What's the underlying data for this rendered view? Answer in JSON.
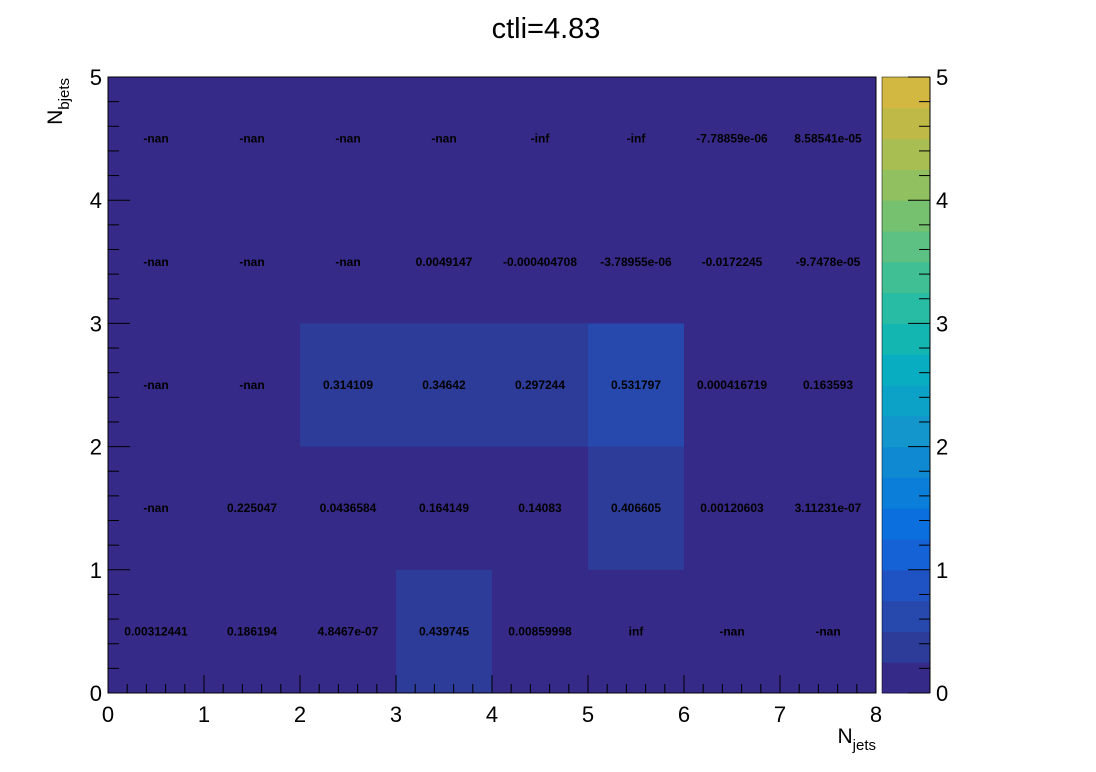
{
  "chart_data": {
    "type": "heatmap",
    "title": "ctli=4.83",
    "xlabel": {
      "main": "N",
      "sub": "jets"
    },
    "ylabel": {
      "main": "N",
      "sub": "bjets"
    },
    "xlim": [
      0,
      8
    ],
    "ylim": [
      0,
      5
    ],
    "x_ticks": [
      "0",
      "1",
      "2",
      "3",
      "4",
      "5",
      "6",
      "7",
      "8"
    ],
    "y_ticks": [
      "0",
      "1",
      "2",
      "3",
      "4",
      "5"
    ],
    "color_scale": {
      "min": 0,
      "max": 5,
      "ticks": [
        "0",
        "1",
        "2",
        "3",
        "4",
        "5"
      ],
      "palette": [
        "#352a87",
        "#2d3c99",
        "#2749ae",
        "#1f53c3",
        "#1562d6",
        "#0b70dd",
        "#0a7ed9",
        "#0f8ad2",
        "#1296cc",
        "#0ca2c8",
        "#08adc1",
        "#14b6b2",
        "#27bca3",
        "#3fbf93",
        "#5cc182",
        "#76c16f",
        "#90c05f",
        "#a8be52",
        "#bfba48",
        "#d2b840",
        "#e3b73a",
        "#f4b937",
        "#fbc635",
        "#f9d72e",
        "#f6e824",
        "#f9fb0e"
      ]
    },
    "rows": [
      {
        "y": "4-5",
        "values": [
          null,
          null,
          null,
          null,
          "-inf",
          "-inf",
          -7.78859e-06,
          8.58541e-05
        ],
        "labels": [
          "-nan",
          "-nan",
          "-nan",
          "-nan",
          "-inf",
          "-inf",
          "-7.78859e-06",
          "8.58541e-05"
        ]
      },
      {
        "y": "3-4",
        "values": [
          null,
          null,
          null,
          0.0049147,
          -0.000404708,
          -3.78955e-06,
          -0.0172245,
          -9.7478e-05
        ],
        "labels": [
          "-nan",
          "-nan",
          "-nan",
          "0.0049147",
          "-0.000404708",
          "-3.78955e-06",
          "-0.0172245",
          "-9.7478e-05"
        ]
      },
      {
        "y": "2-3",
        "values": [
          null,
          null,
          0.314109,
          0.34642,
          0.297244,
          0.531797,
          0.000416719,
          0.163593
        ],
        "labels": [
          "-nan",
          "-nan",
          "0.314109",
          "0.34642",
          "0.297244",
          "0.531797",
          "0.000416719",
          "0.163593"
        ]
      },
      {
        "y": "1-2",
        "values": [
          null,
          0.225047,
          0.0436584,
          0.164149,
          0.14083,
          0.406605,
          0.00120603,
          3.11231e-07
        ],
        "labels": [
          "-nan",
          "0.225047",
          "0.0436584",
          "0.164149",
          "0.14083",
          "0.406605",
          "0.00120603",
          "3.11231e-07"
        ]
      },
      {
        "y": "0-1",
        "values": [
          0.00312441,
          0.186194,
          4.8467e-07,
          0.439745,
          0.00859998,
          "inf",
          null,
          null
        ],
        "labels": [
          "0.00312441",
          "0.186194",
          "4.8467e-07",
          "0.439745",
          "0.00859998",
          "inf",
          "-nan",
          "-nan"
        ]
      }
    ]
  }
}
